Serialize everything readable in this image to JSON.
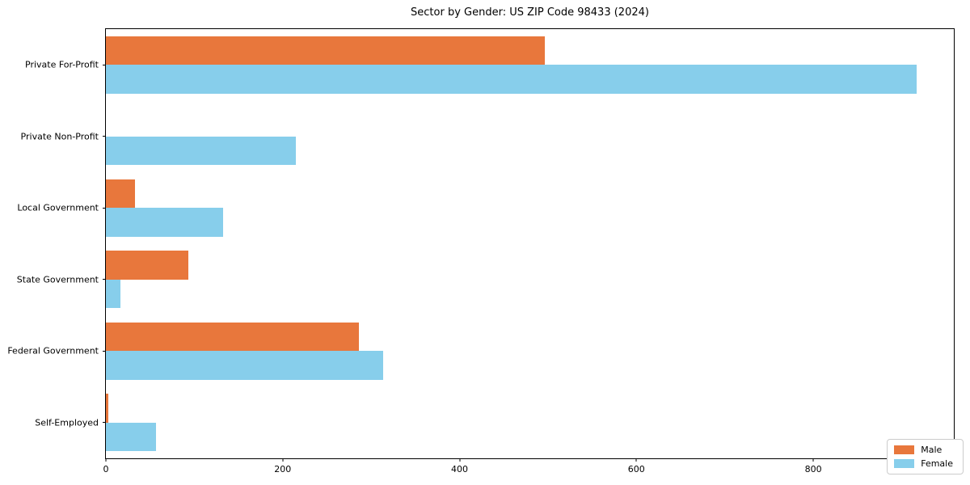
{
  "figure": {
    "background": "#ffffff",
    "spine_color": "#000000"
  },
  "chart_data": {
    "type": "bar",
    "orientation": "horizontal",
    "title": "Sector by Gender: US ZIP Code 98433 (2024)",
    "categories_top_to_bottom": [
      "Private For-Profit",
      "Private Non-Profit",
      "Local Government",
      "State Government",
      "Federal Government",
      "Self-Employed"
    ],
    "series": [
      {
        "name": "Male",
        "color": "#E8773C",
        "values": [
          496,
          0,
          33,
          93,
          286,
          3
        ]
      },
      {
        "name": "Female",
        "color": "#87CEEB",
        "values": [
          917,
          215,
          133,
          16,
          314,
          57
        ]
      }
    ],
    "xlabel": "",
    "ylabel": "",
    "x_ticks": [
      0,
      200,
      400,
      600,
      800
    ],
    "xlim": [
      0,
      959
    ],
    "grid": false,
    "legend": {
      "position": "lower right",
      "entries": [
        "Male",
        "Female"
      ],
      "border_color": "#cccccc"
    }
  }
}
